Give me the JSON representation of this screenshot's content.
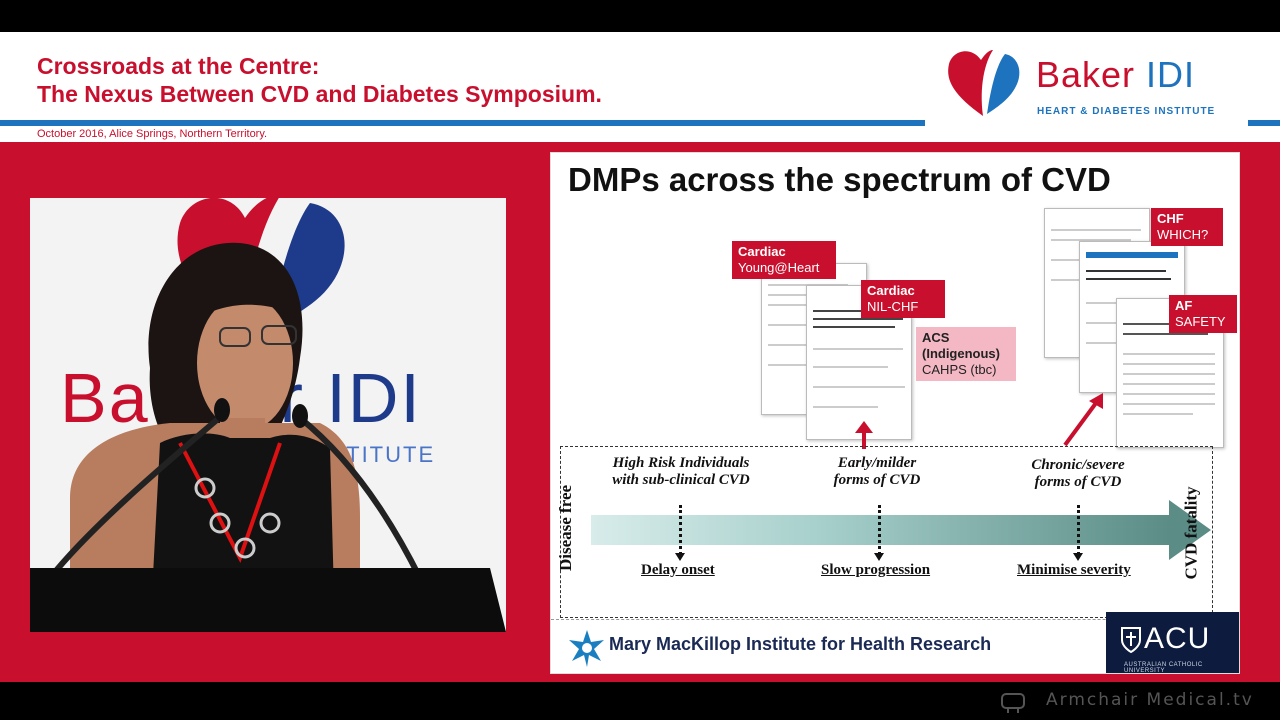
{
  "header": {
    "title_line1": "Crossroads at the Centre:",
    "title_line2": "The Nexus Between CVD and Diabetes Symposium.",
    "subtitle": "October 2016, Alice Springs, Northern Territory.",
    "logo_name_a": "Baker ",
    "logo_name_b": "IDI",
    "logo_sub": "HEART & DIABETES INSTITUTE"
  },
  "video": {
    "backdrop_a": "Ba",
    "backdrop_b": "r IDI",
    "backdrop_sub": "ES INSTITUTE"
  },
  "slide": {
    "title": "DMPs across the spectrum of CVD",
    "tags": {
      "cardiac1_title": "Cardiac",
      "cardiac1_name": "Young@Heart",
      "cardiac2_title": "Cardiac",
      "cardiac2_name": "NIL-CHF",
      "acs_title": "ACS",
      "acs_sub": "(Indigenous)",
      "acs_name": "CAHPS (tbc)",
      "chf_title": "CHF",
      "chf_name": "WHICH?",
      "af_title": "AF",
      "af_name": "SAFETY"
    },
    "left_axis": "Disease free",
    "right_axis": "CVD fatality",
    "stages": [
      {
        "line1": "High Risk Individuals",
        "line2": "with sub-clinical CVD",
        "action": "Delay onset"
      },
      {
        "line1": "Early/milder",
        "line2": "forms of CVD",
        "action": "Slow progression"
      },
      {
        "line1": "Chronic/severe",
        "line2": "forms of CVD",
        "action": "Minimise severity"
      }
    ],
    "footer_institute": "Mary MacKillop Institute for Health Research",
    "acu_text": "ACU",
    "acu_sub": "AUSTRALIAN CATHOLIC UNIVERSITY"
  },
  "watermark": "Armchair Medical.tv",
  "colors": {
    "brand_red": "#c8102e",
    "brand_blue": "#1e73be",
    "acu_navy": "#0d1b3e"
  }
}
